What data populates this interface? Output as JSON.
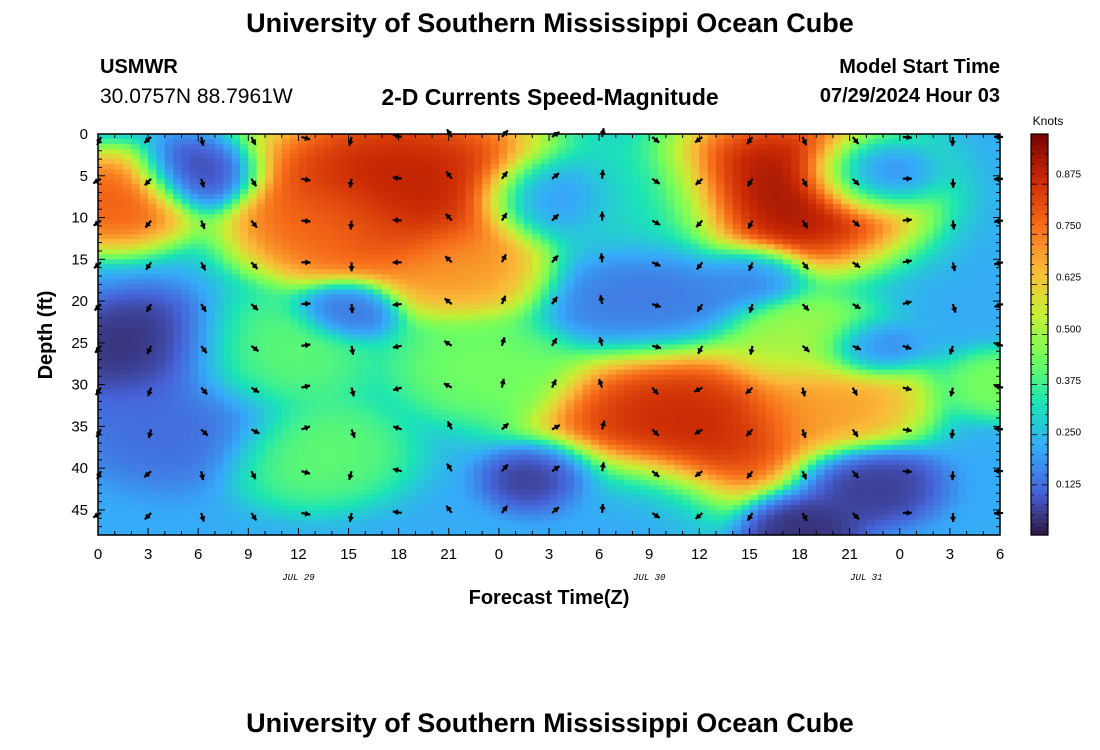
{
  "header": {
    "title": "University of Southern Mississippi Ocean Cube",
    "station": "USMWR",
    "coordinates": "30.0757N  88.7961W",
    "subtitle": "2-D Currents Speed-Magnitude",
    "model_start_label": "Model Start Time",
    "model_start_value": "07/29/2024 Hour 03"
  },
  "footer": {
    "title": "University of Southern Mississippi Ocean Cube"
  },
  "chart_data": {
    "type": "heatmap",
    "title": "2-D Currents Speed-Magnitude",
    "xlabel": "Forecast Time(Z)",
    "ylabel": "Depth (ft)",
    "x_range_hours": [
      0,
      54
    ],
    "y_range_ft": [
      0,
      48
    ],
    "x_ticks": [
      "0",
      "3",
      "6",
      "9",
      "12",
      "15",
      "18",
      "21",
      "0",
      "3",
      "6",
      "9",
      "12",
      "15",
      "18",
      "21",
      "0",
      "3",
      "6"
    ],
    "y_ticks": [
      "0",
      "5",
      "10",
      "15",
      "20",
      "25",
      "30",
      "35",
      "40",
      "45"
    ],
    "date_labels": [
      {
        "text": "JUL 29",
        "hour": 12
      },
      {
        "text": "JUL 30",
        "hour": 33
      },
      {
        "text": "JUL 31",
        "hour": 46
      }
    ],
    "colorbar": {
      "unit": "Knots",
      "ticks": [
        "0.875",
        "0.750",
        "0.625",
        "0.500",
        "0.375",
        "0.250",
        "0.125"
      ],
      "range": [
        0,
        0.97
      ],
      "colormap": [
        "#30123b",
        "#4662d7",
        "#36aaf9",
        "#1ae4b6",
        "#72fe5e",
        "#c8ef34",
        "#faba39",
        "#f66b19",
        "#cb2a04",
        "#7a0403"
      ]
    },
    "speed_centers": [
      {
        "x": 1,
        "y": 8,
        "v": 0.8,
        "s": 2.2
      },
      {
        "x": 6,
        "y": 5,
        "v": 0.05,
        "s": 1.7
      },
      {
        "x": 18,
        "y": 7,
        "v": 0.92,
        "s": 4.2
      },
      {
        "x": 14,
        "y": 11,
        "v": 0.75,
        "s": 2.5
      },
      {
        "x": 22,
        "y": 16,
        "v": 0.7,
        "s": 2.5
      },
      {
        "x": 3,
        "y": 26,
        "v": 0.03,
        "s": 2.6
      },
      {
        "x": 5,
        "y": 34,
        "v": 0.12,
        "s": 3.0
      },
      {
        "x": 10,
        "y": 27,
        "v": 0.42,
        "s": 2.8
      },
      {
        "x": 13,
        "y": 38,
        "v": 0.42,
        "s": 2.5
      },
      {
        "x": 15,
        "y": 21,
        "v": 0.12,
        "s": 1.4
      },
      {
        "x": 23,
        "y": 28,
        "v": 0.44,
        "s": 2.5
      },
      {
        "x": 27,
        "y": 8,
        "v": 0.12,
        "s": 2.0
      },
      {
        "x": 32,
        "y": 9,
        "v": 0.3,
        "s": 3.0
      },
      {
        "x": 33,
        "y": 19,
        "v": 0.14,
        "s": 3.0
      },
      {
        "x": 27,
        "y": 41,
        "v": 0.03,
        "s": 1.7
      },
      {
        "x": 35,
        "y": 35,
        "v": 0.9,
        "s": 3.8
      },
      {
        "x": 32,
        "y": 44,
        "v": 0.2,
        "s": 2.5
      },
      {
        "x": 41,
        "y": 7,
        "v": 0.96,
        "s": 3.5
      },
      {
        "x": 46,
        "y": 5,
        "v": 0.03,
        "s": 1.8
      },
      {
        "x": 44,
        "y": 32,
        "v": 0.7,
        "s": 2.5
      },
      {
        "x": 42,
        "y": 25,
        "v": 0.5,
        "s": 2.3
      },
      {
        "x": 46,
        "y": 26,
        "v": 0.12,
        "s": 1.4
      },
      {
        "x": 46,
        "y": 42,
        "v": 0.05,
        "s": 1.9
      },
      {
        "x": 42,
        "y": 47,
        "v": 0.03,
        "s": 1.7
      },
      {
        "x": 39,
        "y": 17,
        "v": 0.15,
        "s": 1.5
      },
      {
        "x": 54,
        "y": 30,
        "v": 0.45,
        "s": 1.5
      }
    ],
    "background_speed": 0.22
  }
}
